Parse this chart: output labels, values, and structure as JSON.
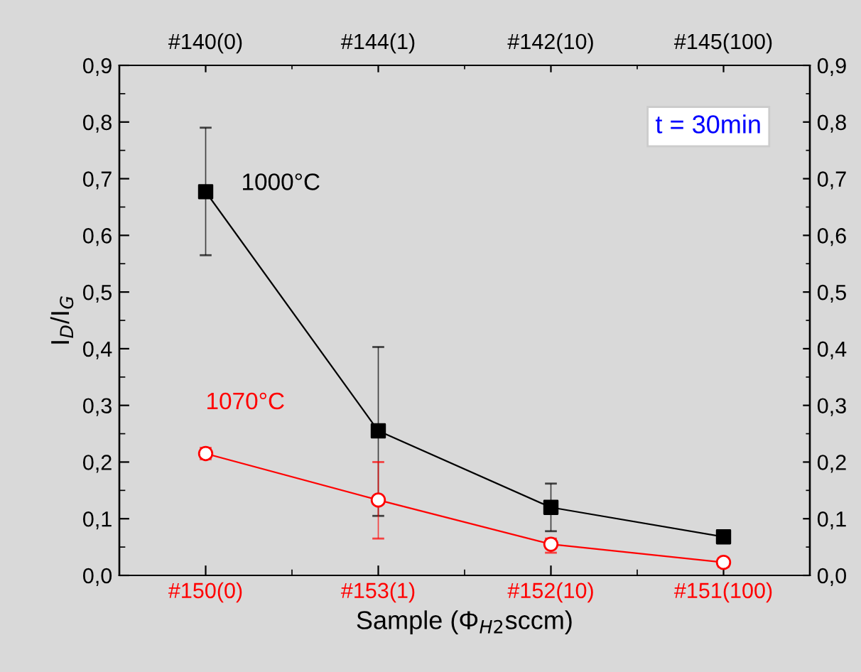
{
  "chart_data": {
    "type": "line",
    "ylabel": "I$_{D}$/I$_{G}$",
    "xlabel": "Sample (Φ$_{H2}$sccm)",
    "categories": [
      "#150(0)",
      "#153(1)",
      "#152(10)",
      "#151(100)"
    ],
    "ylim": [
      0,
      0.9
    ],
    "yticks": [
      {
        "value": 0,
        "label": "0,0"
      },
      {
        "value": 0.1,
        "label": "0,1"
      },
      {
        "value": 0.2,
        "label": "0,2"
      },
      {
        "value": 0.3,
        "label": "0,3"
      },
      {
        "value": 0.4,
        "label": "0,4"
      },
      {
        "value": 0.5,
        "label": "0,5"
      },
      {
        "value": 0.6,
        "label": "0,6"
      },
      {
        "value": 0.7,
        "label": "0,7"
      },
      {
        "value": 0.8,
        "label": "0,8"
      },
      {
        "value": 0.9,
        "label": "0,9"
      }
    ],
    "y2lim": [
      0,
      0.9
    ],
    "y2ticks": [
      {
        "value": 0,
        "label": "0,0"
      },
      {
        "value": 0.1,
        "label": "0,1"
      },
      {
        "value": 0.2,
        "label": "0,2"
      },
      {
        "value": 0.3,
        "label": "0,3"
      },
      {
        "value": 0.4,
        "label": "0,4"
      },
      {
        "value": 0.5,
        "label": "0,5"
      },
      {
        "value": 0.6,
        "label": "0,6"
      },
      {
        "value": 0.7,
        "label": "0,7"
      },
      {
        "value": 0.8,
        "label": "0,8"
      },
      {
        "value": 0.9,
        "label": "0,9"
      }
    ],
    "series": [
      {
        "name": "1000°C",
        "color": "#000000",
        "marker": "square",
        "values": [
          0.677,
          0.255,
          0.12,
          0.068
        ],
        "errors": [
          [
            0.565,
            0.79
          ],
          [
            0.105,
            0.403
          ],
          [
            0.078,
            0.162
          ],
          [
            0.06,
            0.075
          ]
        ]
      },
      {
        "name": "1070°C",
        "color": "#ff0000",
        "marker": "circle",
        "values": [
          0.215,
          0.133,
          0.055,
          0.023
        ],
        "errors": [
          [
            0.205,
            0.225
          ],
          [
            0.065,
            0.2
          ],
          [
            0.04,
            0.065
          ],
          [
            0.015,
            0.03
          ]
        ]
      }
    ],
    "annotations": [
      "#140(0)",
      "#144(1)",
      "#142(10)",
      "#145(100)",
      "t = 30min"
    ],
    "grid": false,
    "legend": false
  }
}
